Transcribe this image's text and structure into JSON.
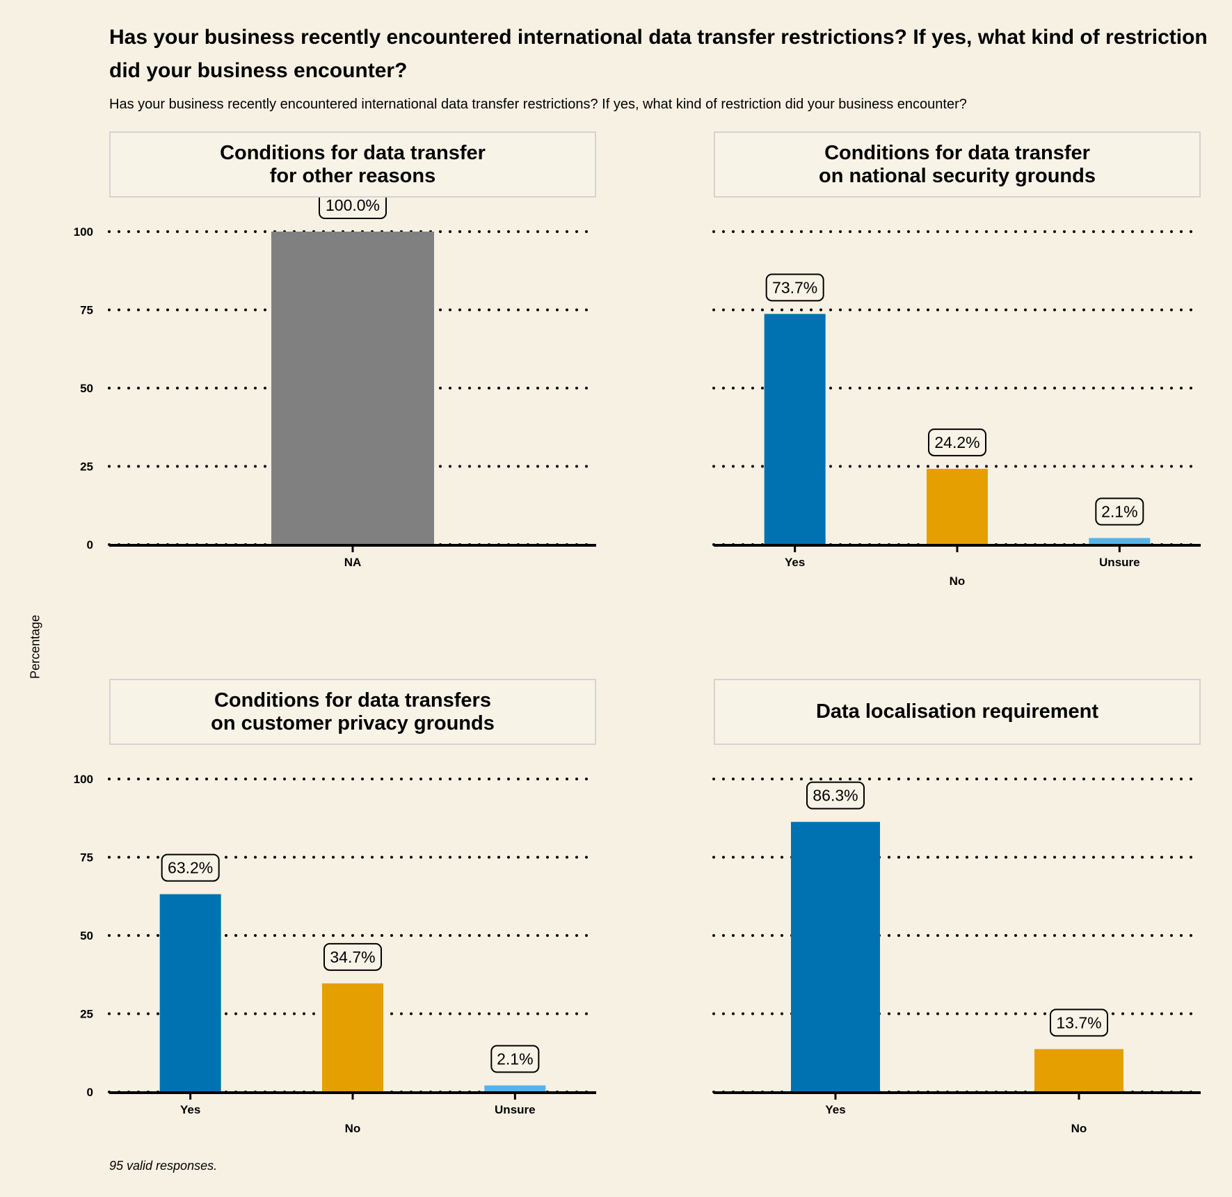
{
  "title": "Has your business recently encountered international data transfer restrictions? If yes, what kind of restriction did your business encounter?",
  "subtitle": "Has your business recently encountered international data transfer restrictions? If yes, what kind of restriction did your business encounter?",
  "y_axis_label": "Percentage",
  "caption": "95 valid responses.",
  "colors": {
    "Yes": "#0072b2",
    "No": "#e69f00",
    "Unsure": "#56b4e9",
    "NA": "#808080",
    "background": "#f7f1e4"
  },
  "chart_data": [
    {
      "type": "bar",
      "facet_title": "Conditions for data transfer\nfor other reasons",
      "categories": [
        "NA"
      ],
      "values": [
        100.0
      ],
      "value_labels": [
        "100.0%"
      ],
      "yticks": [
        "0",
        "25",
        "50",
        "75",
        "100"
      ],
      "ylim": [
        0,
        100
      ],
      "grid": "dotted horizontal"
    },
    {
      "type": "bar",
      "facet_title": "Conditions for data transfer\non national security grounds",
      "categories": [
        "Yes",
        "No",
        "Unsure"
      ],
      "values": [
        73.7,
        24.2,
        2.1
      ],
      "value_labels": [
        "73.7%",
        "24.2%",
        "2.1%"
      ],
      "yticks": [],
      "ylim": [
        0,
        100
      ],
      "grid": "dotted horizontal"
    },
    {
      "type": "bar",
      "facet_title": "Conditions for data transfers\non customer privacy grounds",
      "categories": [
        "Yes",
        "No",
        "Unsure"
      ],
      "values": [
        63.2,
        34.7,
        2.1
      ],
      "value_labels": [
        "63.2%",
        "34.7%",
        "2.1%"
      ],
      "yticks": [
        "0",
        "25",
        "50",
        "75",
        "100"
      ],
      "ylim": [
        0,
        100
      ],
      "grid": "dotted horizontal"
    },
    {
      "type": "bar",
      "facet_title": "Data localisation requirement",
      "categories": [
        "Yes",
        "No"
      ],
      "values": [
        86.3,
        13.7
      ],
      "value_labels": [
        "86.3%",
        "13.7%"
      ],
      "yticks": [],
      "ylim": [
        0,
        100
      ],
      "grid": "dotted horizontal"
    }
  ]
}
